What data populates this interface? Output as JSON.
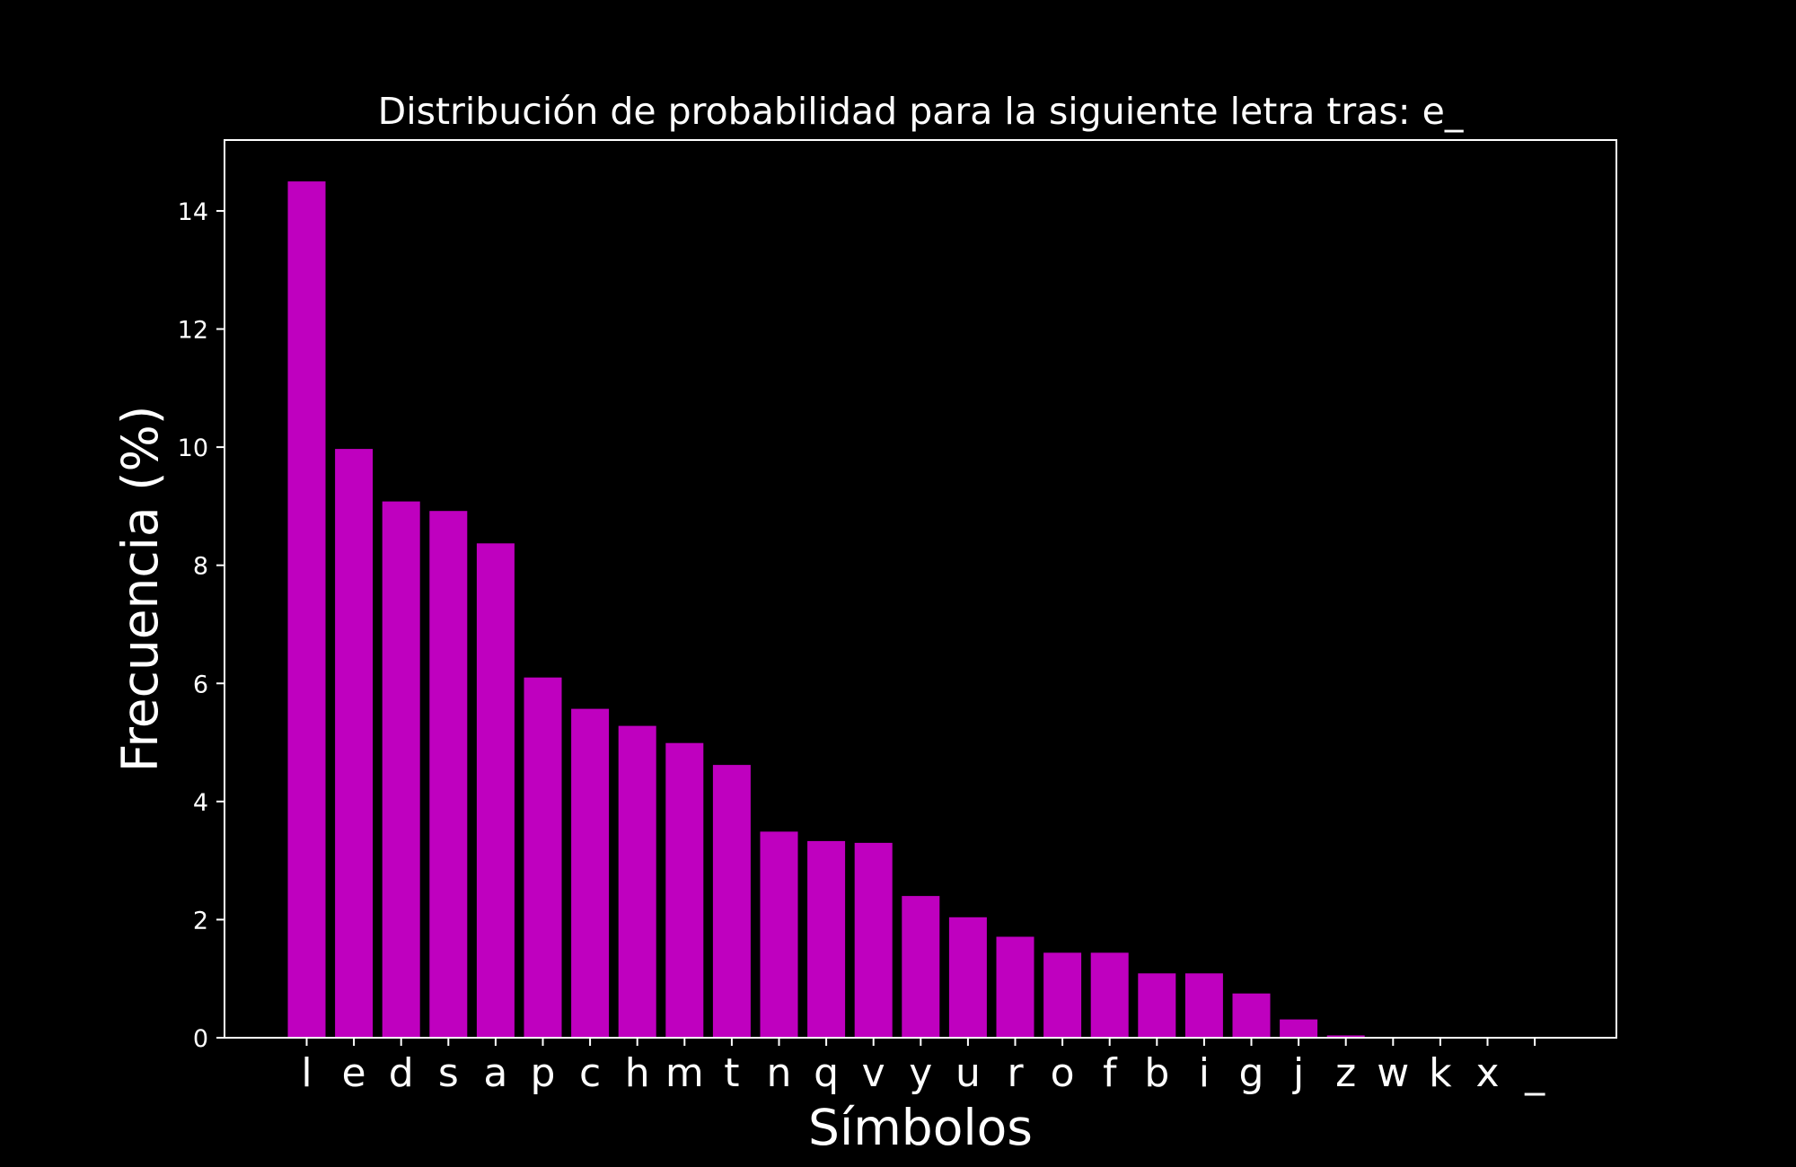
{
  "chart_data": {
    "type": "bar",
    "title": "Distribución de probabilidad para la siguiente letra tras: e_",
    "xlabel": "Símbolos",
    "ylabel": "Frecuencia (%)",
    "categories": [
      "l",
      "e",
      "d",
      "s",
      "a",
      "p",
      "c",
      "h",
      "m",
      "t",
      "n",
      "q",
      "v",
      "y",
      "u",
      "r",
      "o",
      "f",
      "b",
      "i",
      "g",
      "j",
      "z",
      "w",
      "k",
      "x",
      "_"
    ],
    "values": [
      14.5,
      9.97,
      9.08,
      8.92,
      8.37,
      6.1,
      5.57,
      5.28,
      4.99,
      4.62,
      3.49,
      3.33,
      3.3,
      2.4,
      2.04,
      1.71,
      1.44,
      1.44,
      1.09,
      1.09,
      0.75,
      0.31,
      0.04,
      0.0,
      0.0,
      0.0,
      0.0
    ],
    "yticks": [
      "0",
      "2",
      "4",
      "6",
      "8",
      "10",
      "12",
      "14"
    ],
    "ylim": [
      0,
      15.2
    ],
    "grid": false,
    "colors": {
      "background": "#000000",
      "bar": "#bf00bf",
      "axes": "#ffffff",
      "text": "#ffffff"
    }
  }
}
